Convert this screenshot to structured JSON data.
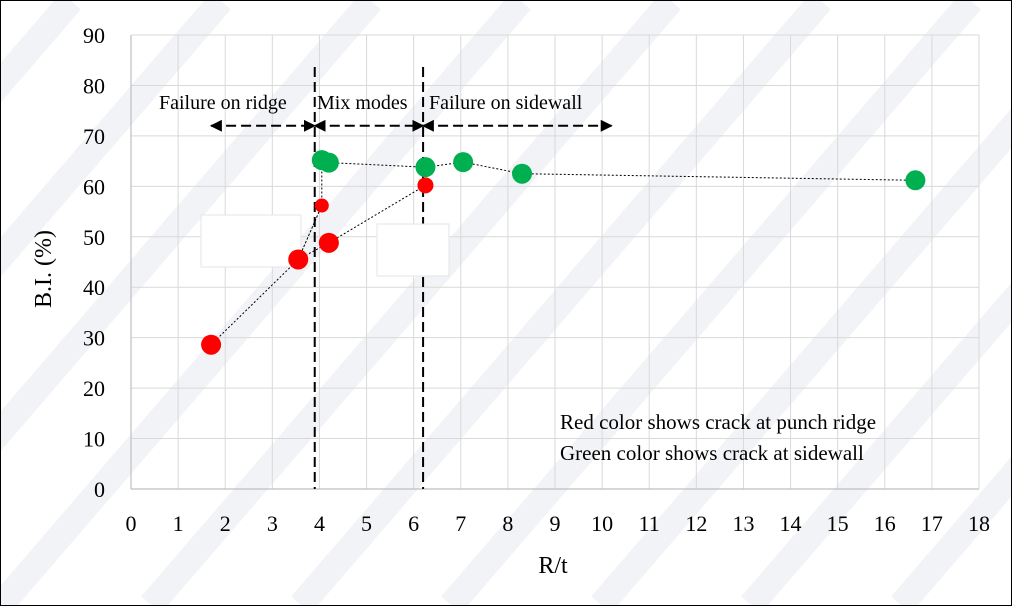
{
  "chart_data": {
    "type": "scatter",
    "xlabel": "R/t",
    "ylabel": "B.I. (%)",
    "xlim": [
      0,
      18
    ],
    "ylim": [
      0,
      90
    ],
    "x_ticks": [
      0,
      1,
      2,
      3,
      4,
      5,
      6,
      7,
      8,
      9,
      10,
      11,
      12,
      13,
      14,
      15,
      16,
      17,
      18
    ],
    "y_ticks": [
      0,
      10,
      20,
      30,
      40,
      50,
      60,
      70,
      80,
      90
    ],
    "grid": true,
    "series": [
      {
        "color": "#ff0000",
        "points": [
          {
            "x": 1.7,
            "y": 28.6
          },
          {
            "x": 3.55,
            "y": 45.5
          },
          {
            "x": 4.05,
            "y": 56.2
          },
          {
            "x": 4.2,
            "y": 48.8
          },
          {
            "x": 6.25,
            "y": 60.2
          }
        ]
      },
      {
        "color": "#00b050",
        "points": [
          {
            "x": 4.05,
            "y": 65.2
          },
          {
            "x": 4.2,
            "y": 64.7
          },
          {
            "x": 6.25,
            "y": 63.8
          },
          {
            "x": 7.05,
            "y": 64.8
          },
          {
            "x": 8.3,
            "y": 62.5
          },
          {
            "x": 16.65,
            "y": 61.2
          }
        ]
      }
    ],
    "regions": [
      {
        "label": "Failure on ridge",
        "from": 1.7,
        "to": 3.9
      },
      {
        "label": "Mix  modes",
        "from": 3.9,
        "to": 6.2
      },
      {
        "label": "Failure on sidewall",
        "from": 6.2,
        "to": 10.2
      }
    ],
    "boundaries": [
      3.9,
      6.2
    ],
    "arrow_y": 72,
    "annotations": [
      {
        "text": "Red color shows crack at punch ridge",
        "color": "#ff0000"
      },
      {
        "text": "Green color shows crack at sidewall",
        "color": "#00b050"
      }
    ]
  }
}
